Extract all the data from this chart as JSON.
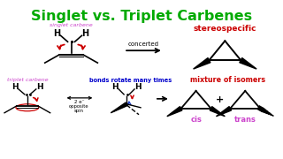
{
  "title": "Singlet vs. Triplet Carbenes",
  "title_color": "#00aa00",
  "title_fontsize": 11.5,
  "bg_color": "#ffffff",
  "singlet_label": "singlet carbene",
  "singlet_label_color": "#cc44cc",
  "triplet_label": "triplet carbene",
  "triplet_label_color": "#cc44cc",
  "bonds_rotate_label": "bonds rotate many times",
  "bonds_rotate_color": "#0000cc",
  "concerted_label": "concerted",
  "stereospecific_label": "stereospecific",
  "stereospecific_color": "#cc0000",
  "mixture_label": "mixture of isomers",
  "mixture_color": "#cc0000",
  "cis_label": "cis",
  "cis_color": "#cc44cc",
  "trans_label": "trans",
  "trans_color": "#cc44cc",
  "curve_arrow_color": "#cc0000",
  "blue_arrow_color": "#2244cc",
  "plus_label": "+"
}
